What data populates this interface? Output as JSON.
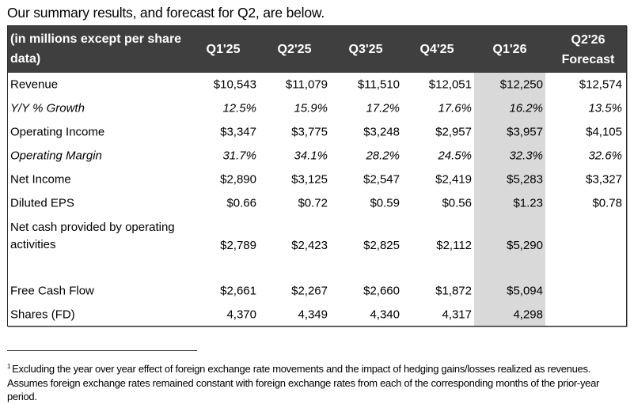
{
  "intro": "Our summary results, and forecast for Q2, are below.",
  "table": {
    "corner_label": "(in millions except per share data)",
    "columns": [
      "Q1'25",
      "Q2'25",
      "Q3'25",
      "Q4'25",
      "Q1'26",
      "Q2'26 Forecast"
    ],
    "columns_multiline": {
      "forecast_line1": "Q2'26",
      "forecast_line2": "Forecast"
    },
    "highlighted_column": "Q1'26",
    "highlight_color": "#d9d9d9",
    "header_color": "#3f3f3f",
    "rows": [
      {
        "label": "Revenue",
        "italic": false,
        "values": [
          "$10,543",
          "$11,079",
          "$11,510",
          "$12,051",
          "$12,250",
          "$12,574"
        ]
      },
      {
        "label": "Y/Y % Growth",
        "italic": true,
        "values": [
          "12.5%",
          "15.9%",
          "17.2%",
          "17.6%",
          "16.2%",
          "13.5%"
        ]
      },
      {
        "label": "Operating Income",
        "italic": false,
        "values": [
          "$3,347",
          "$3,775",
          "$3,248",
          "$2,957",
          "$3,957",
          "$4,105"
        ]
      },
      {
        "label": "Operating Margin",
        "italic": true,
        "values": [
          "31.7%",
          "34.1%",
          "28.2%",
          "24.5%",
          "32.3%",
          "32.6%"
        ]
      },
      {
        "label": "Net Income",
        "italic": false,
        "values": [
          "$2,890",
          "$3,125",
          "$2,547",
          "$2,419",
          "$5,283",
          "$3,327"
        ]
      },
      {
        "label": "Diluted EPS",
        "italic": false,
        "values": [
          "$0.66",
          "$0.72",
          "$0.59",
          "$0.56",
          "$1.23",
          "$0.78"
        ]
      },
      {
        "label": "Net cash provided by operating activities",
        "italic": false,
        "values": [
          "$2,789",
          "$2,423",
          "$2,825",
          "$2,112",
          "$5,290",
          ""
        ]
      },
      {
        "label": "Free Cash Flow",
        "italic": false,
        "values": [
          "$2,661",
          "$2,267",
          "$2,660",
          "$1,872",
          "$5,094",
          ""
        ]
      },
      {
        "label": "Shares (FD)",
        "italic": false,
        "values": [
          "4,370",
          "4,349",
          "4,340",
          "4,317",
          "4,298",
          ""
        ]
      }
    ]
  },
  "footnote": {
    "marker": "1",
    "text": "Excluding the year over year effect of foreign exchange rate movements and the impact of hedging gains/losses realized as revenues. Assumes foreign exchange rates remained constant with foreign exchange rates from each of the corresponding months of the prior-year period."
  }
}
